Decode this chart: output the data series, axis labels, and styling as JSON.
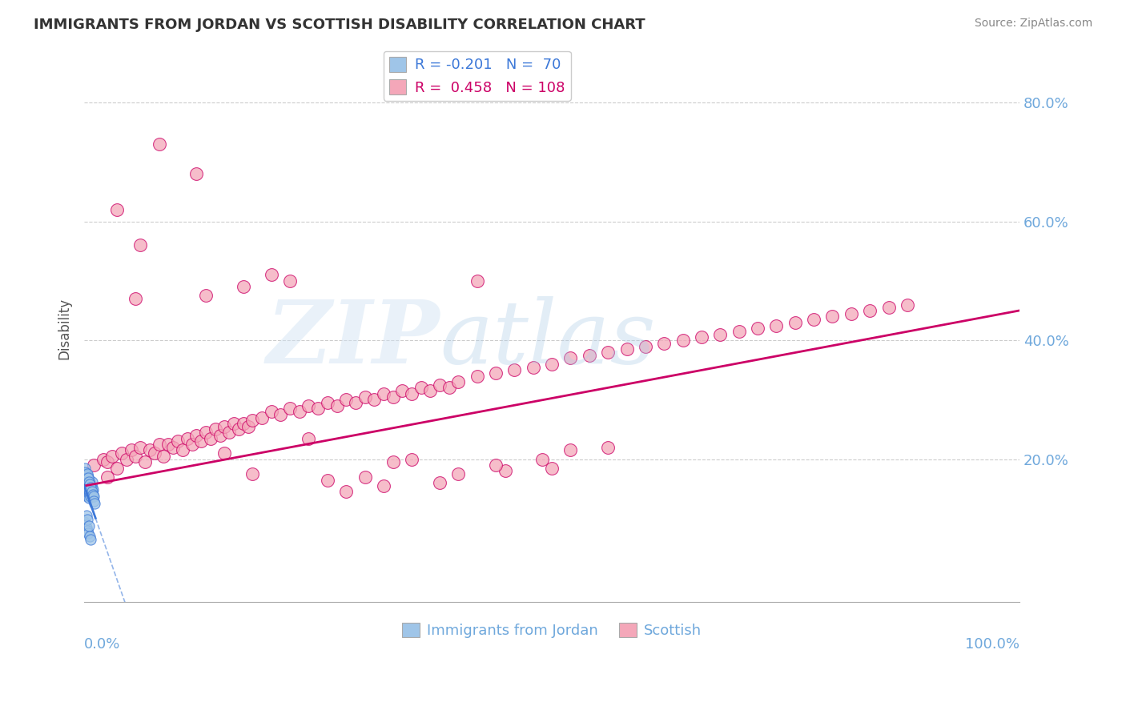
{
  "title": "IMMIGRANTS FROM JORDAN VS SCOTTISH DISABILITY CORRELATION CHART",
  "source": "Source: ZipAtlas.com",
  "ylabel": "Disability",
  "y_ticks": [
    0.0,
    0.2,
    0.4,
    0.6,
    0.8
  ],
  "y_tick_labels": [
    "",
    "20.0%",
    "40.0%",
    "60.0%",
    "80.0%"
  ],
  "xlim": [
    0.0,
    1.0
  ],
  "ylim": [
    -0.04,
    0.88
  ],
  "blue_color": "#9fc5e8",
  "pink_color": "#f4a7b9",
  "blue_line_color": "#3c78d8",
  "pink_line_color": "#cc0066",
  "title_color": "#333333",
  "axis_color": "#6fa8dc",
  "grid_color": "#cccccc",
  "jordan_x": [
    0.0,
    0.001,
    0.001,
    0.001,
    0.002,
    0.002,
    0.002,
    0.002,
    0.002,
    0.002,
    0.003,
    0.003,
    0.003,
    0.003,
    0.003,
    0.003,
    0.003,
    0.004,
    0.004,
    0.004,
    0.004,
    0.004,
    0.004,
    0.005,
    0.005,
    0.005,
    0.005,
    0.005,
    0.006,
    0.006,
    0.006,
    0.006,
    0.007,
    0.007,
    0.007,
    0.008,
    0.008,
    0.008,
    0.009,
    0.009,
    0.0,
    0.001,
    0.001,
    0.002,
    0.002,
    0.002,
    0.003,
    0.003,
    0.004,
    0.004,
    0.005,
    0.005,
    0.006,
    0.006,
    0.007,
    0.008,
    0.009,
    0.01,
    0.01,
    0.011,
    0.0,
    0.001,
    0.002,
    0.002,
    0.003,
    0.003,
    0.004,
    0.005,
    0.006,
    0.007
  ],
  "jordan_y": [
    0.155,
    0.16,
    0.148,
    0.17,
    0.152,
    0.165,
    0.14,
    0.175,
    0.158,
    0.145,
    0.162,
    0.155,
    0.148,
    0.172,
    0.138,
    0.168,
    0.145,
    0.155,
    0.162,
    0.148,
    0.14,
    0.17,
    0.16,
    0.152,
    0.165,
    0.145,
    0.158,
    0.135,
    0.155,
    0.148,
    0.162,
    0.142,
    0.155,
    0.148,
    0.138,
    0.152,
    0.145,
    0.162,
    0.148,
    0.138,
    0.175,
    0.185,
    0.178,
    0.172,
    0.168,
    0.162,
    0.175,
    0.158,
    0.168,
    0.152,
    0.162,
    0.148,
    0.158,
    0.145,
    0.152,
    0.145,
    0.14,
    0.138,
    0.13,
    0.125,
    0.095,
    0.09,
    0.085,
    0.105,
    0.08,
    0.098,
    0.075,
    0.088,
    0.07,
    0.065
  ],
  "scottish_x": [
    0.01,
    0.02,
    0.025,
    0.03,
    0.035,
    0.04,
    0.045,
    0.05,
    0.055,
    0.06,
    0.065,
    0.07,
    0.075,
    0.08,
    0.085,
    0.09,
    0.095,
    0.1,
    0.105,
    0.11,
    0.115,
    0.12,
    0.125,
    0.13,
    0.135,
    0.14,
    0.145,
    0.15,
    0.155,
    0.16,
    0.165,
    0.17,
    0.175,
    0.18,
    0.19,
    0.2,
    0.21,
    0.22,
    0.23,
    0.24,
    0.25,
    0.26,
    0.27,
    0.28,
    0.29,
    0.3,
    0.31,
    0.32,
    0.33,
    0.34,
    0.35,
    0.36,
    0.37,
    0.38,
    0.39,
    0.4,
    0.42,
    0.44,
    0.46,
    0.48,
    0.5,
    0.52,
    0.54,
    0.56,
    0.58,
    0.6,
    0.62,
    0.64,
    0.66,
    0.68,
    0.7,
    0.72,
    0.74,
    0.76,
    0.78,
    0.8,
    0.82,
    0.84,
    0.86,
    0.88,
    0.38,
    0.28,
    0.18,
    0.08,
    0.035,
    0.055,
    0.17,
    0.26,
    0.32,
    0.12,
    0.2,
    0.3,
    0.06,
    0.15,
    0.24,
    0.4,
    0.5,
    0.35,
    0.45,
    0.13,
    0.42,
    0.33,
    0.44,
    0.52,
    0.025,
    0.49,
    0.22,
    0.56
  ],
  "scottish_y": [
    0.19,
    0.2,
    0.195,
    0.205,
    0.185,
    0.21,
    0.2,
    0.215,
    0.205,
    0.22,
    0.195,
    0.215,
    0.21,
    0.225,
    0.205,
    0.225,
    0.22,
    0.23,
    0.215,
    0.235,
    0.225,
    0.24,
    0.23,
    0.245,
    0.235,
    0.25,
    0.24,
    0.255,
    0.245,
    0.26,
    0.25,
    0.26,
    0.255,
    0.265,
    0.27,
    0.28,
    0.275,
    0.285,
    0.28,
    0.29,
    0.285,
    0.295,
    0.29,
    0.3,
    0.295,
    0.305,
    0.3,
    0.31,
    0.305,
    0.315,
    0.31,
    0.32,
    0.315,
    0.325,
    0.32,
    0.33,
    0.34,
    0.345,
    0.35,
    0.355,
    0.36,
    0.37,
    0.375,
    0.38,
    0.385,
    0.39,
    0.395,
    0.4,
    0.405,
    0.41,
    0.415,
    0.42,
    0.425,
    0.43,
    0.435,
    0.44,
    0.445,
    0.45,
    0.455,
    0.46,
    0.16,
    0.145,
    0.175,
    0.73,
    0.62,
    0.47,
    0.49,
    0.165,
    0.155,
    0.68,
    0.51,
    0.17,
    0.56,
    0.21,
    0.235,
    0.175,
    0.185,
    0.2,
    0.18,
    0.475,
    0.5,
    0.195,
    0.19,
    0.215,
    0.17,
    0.2,
    0.5,
    0.22
  ]
}
